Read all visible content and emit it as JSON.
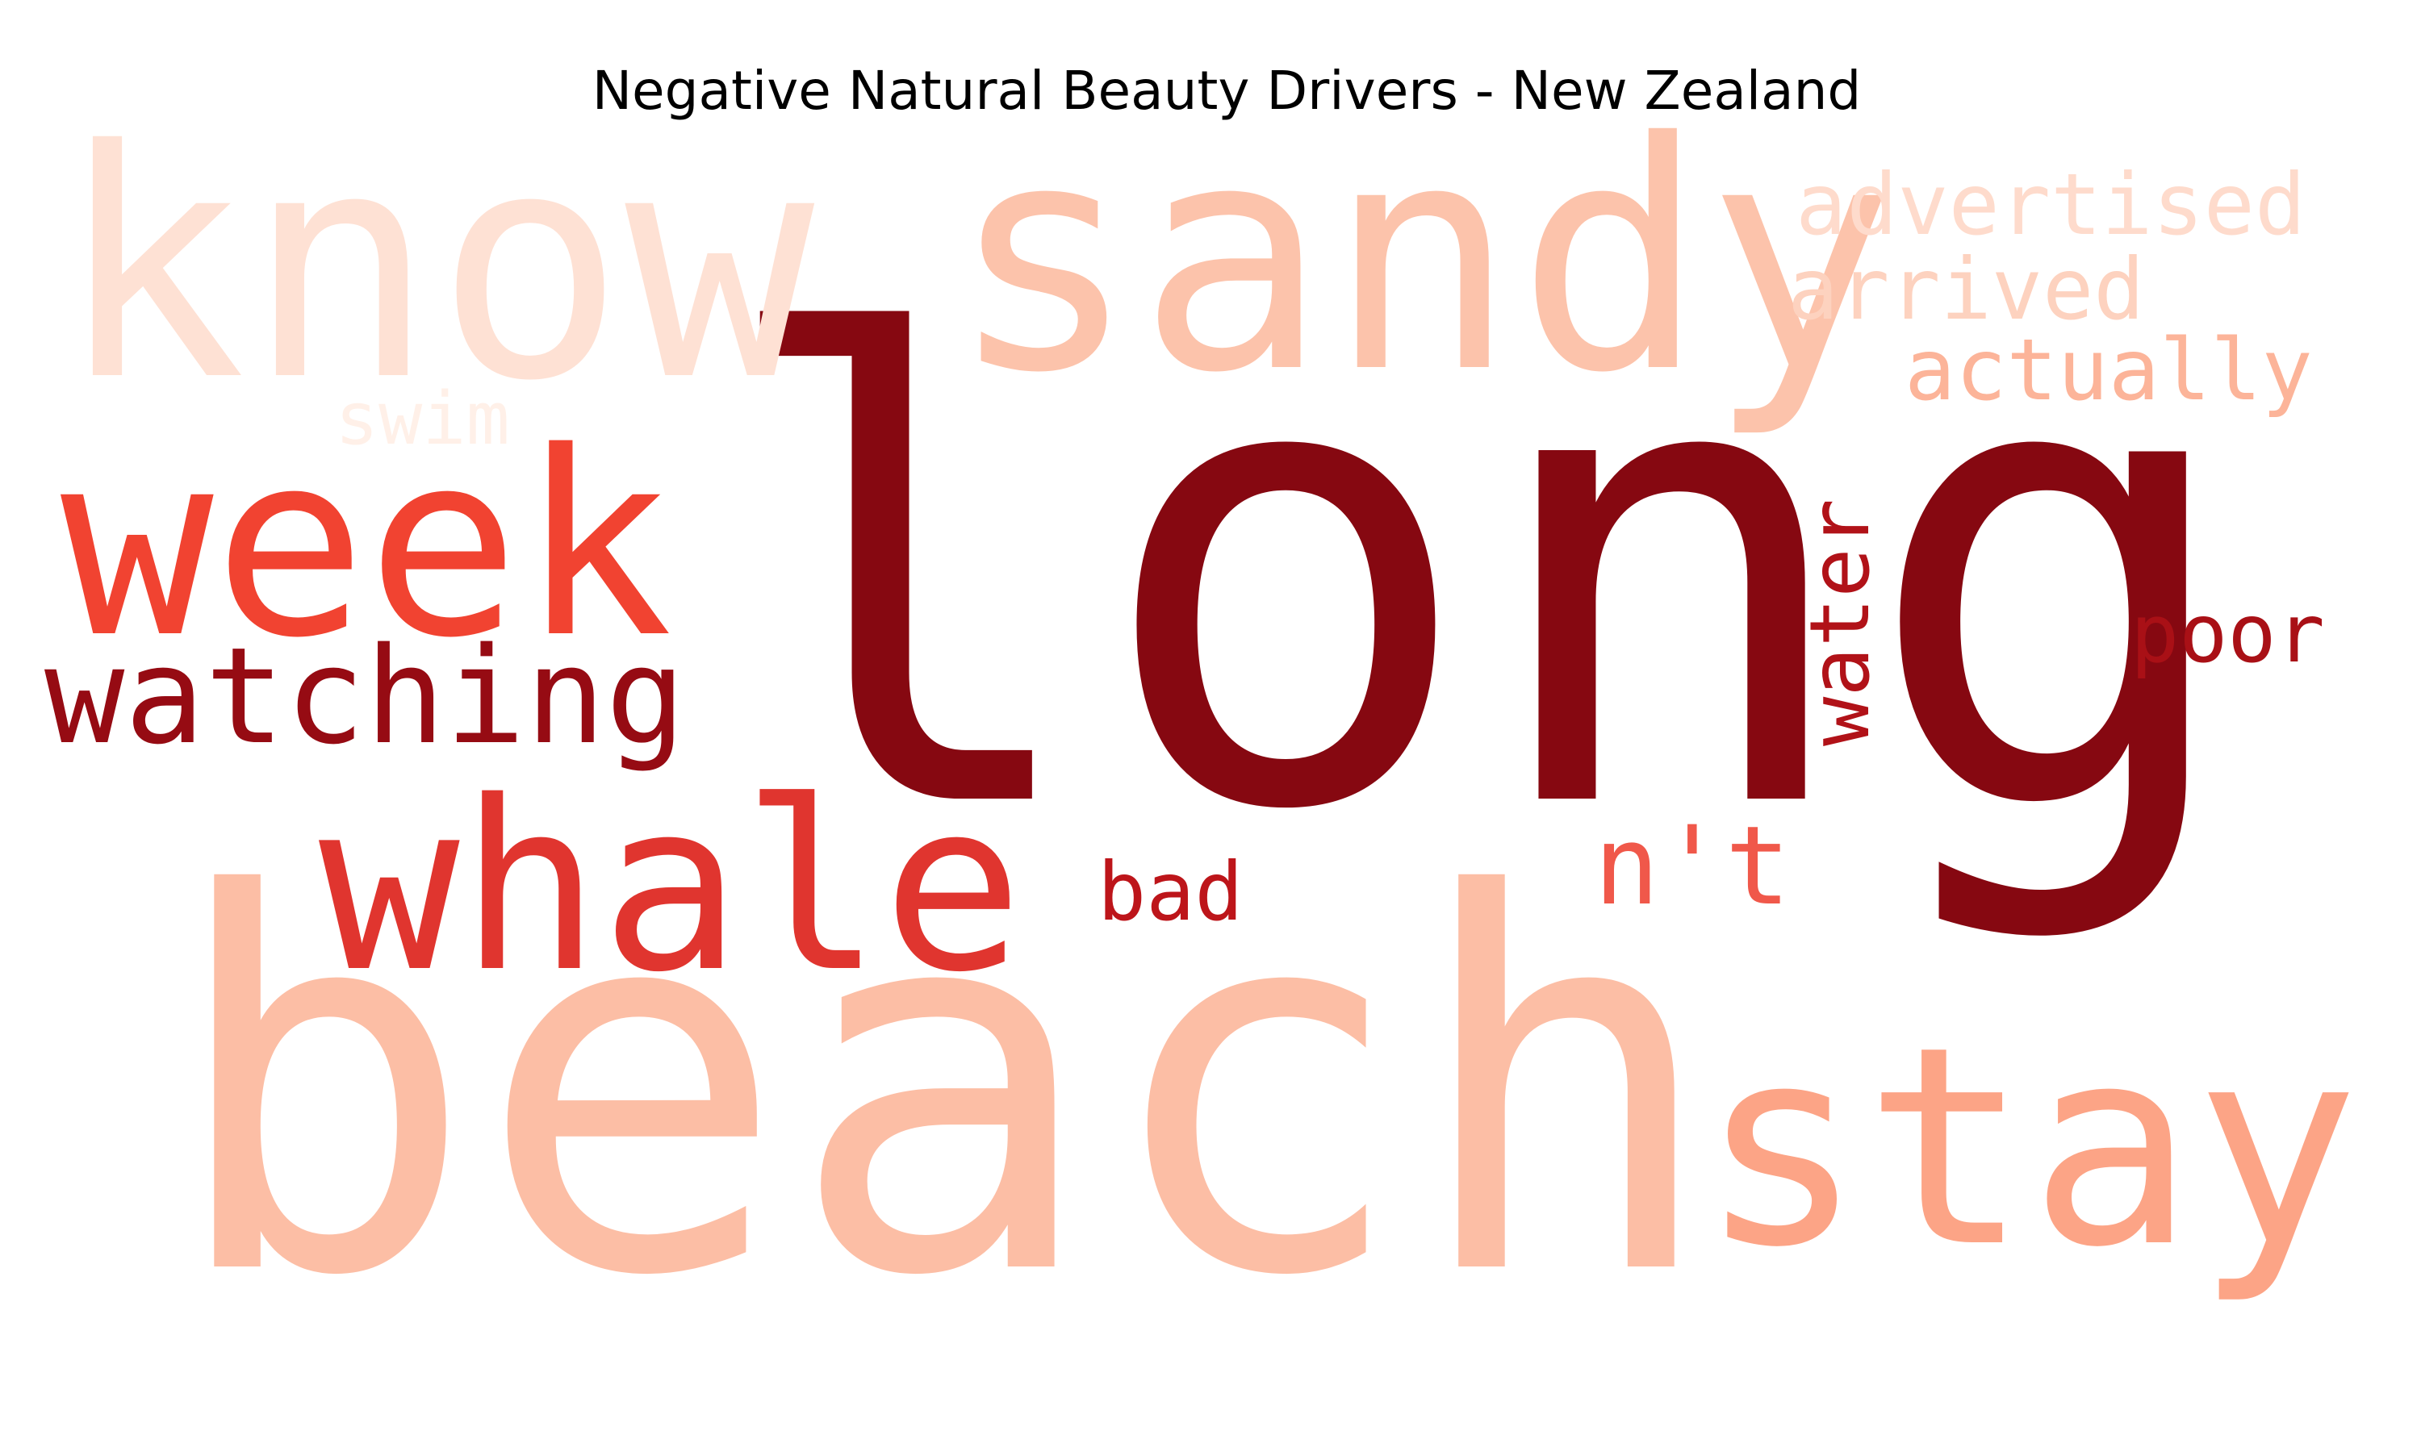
{
  "chart_data": {
    "type": "wordcloud",
    "title": "Negative Natural Beauty Drivers - New Zealand",
    "colormap": "Reds",
    "words": [
      {
        "text": "long",
        "color": "#860811"
      },
      {
        "text": "beach",
        "color": "#fcbea5"
      },
      {
        "text": "sandy",
        "color": "#fcc3ab"
      },
      {
        "text": "know",
        "color": "#fee1d4"
      },
      {
        "text": "stay",
        "color": "#fca486"
      },
      {
        "text": "week",
        "color": "#f14331"
      },
      {
        "text": "whale",
        "color": "#e0352f"
      },
      {
        "text": "watching",
        "color": "#960b13"
      },
      {
        "text": "advertised",
        "color": "#fedbcc"
      },
      {
        "text": "arrived",
        "color": "#fdd2bf"
      },
      {
        "text": "actually",
        "color": "#fcb499"
      },
      {
        "text": "swim",
        "color": "#fff0e8"
      },
      {
        "text": "water",
        "color": "#b11218"
      },
      {
        "text": "poor",
        "color": "#a91016"
      },
      {
        "text": "n't",
        "color": "#f0584a"
      },
      {
        "text": "bad",
        "color": "#bd151a"
      }
    ]
  }
}
